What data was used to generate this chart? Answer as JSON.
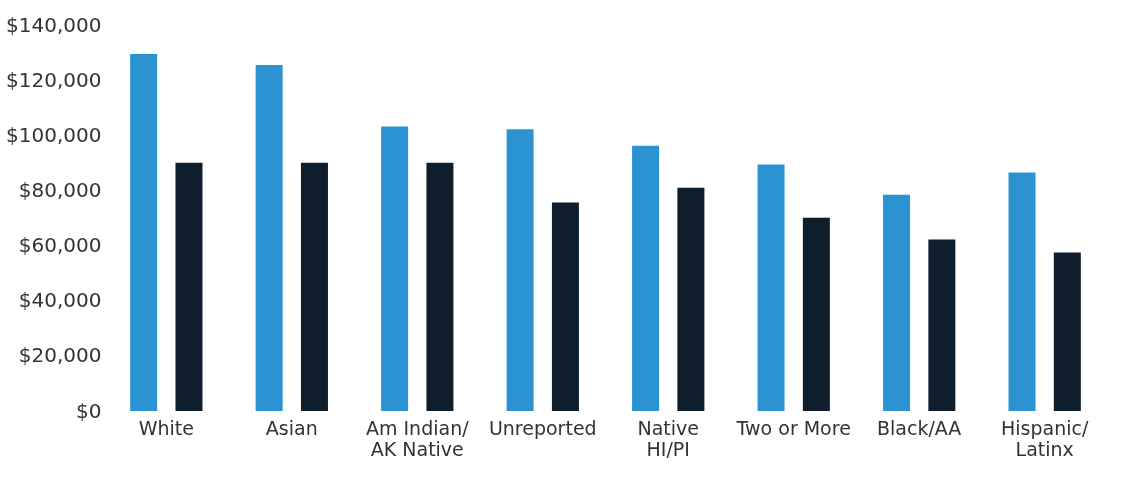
{
  "chart_data": {
    "type": "bar",
    "categories": [
      "White",
      "Asian",
      "Am Indian/\nAK Native",
      "Unreported",
      "Native\nHI/PI",
      "Two or More",
      "Black/AA",
      "Hispanic/\nLatinx"
    ],
    "series": [
      {
        "color": "#2b93d1",
        "values": [
          129500,
          125500,
          103200,
          102200,
          96200,
          89400,
          78400,
          86500
        ]
      },
      {
        "color": "#0f1e2c",
        "values": [
          90000,
          90000,
          90000,
          75600,
          81000,
          70100,
          62200,
          57500
        ]
      }
    ],
    "ylim": [
      0,
      140000
    ],
    "yticks": [
      {
        "value": 0,
        "label": "$0"
      },
      {
        "value": 20000,
        "label": "$20,000"
      },
      {
        "value": 40000,
        "label": "$40,000"
      },
      {
        "value": 60000,
        "label": "$60,000"
      },
      {
        "value": 80000,
        "label": "$80,000"
      },
      {
        "value": 100000,
        "label": "$100,000"
      },
      {
        "value": 120000,
        "label": "$120,000"
      },
      {
        "value": 140000,
        "label": "$140,000"
      }
    ],
    "grid": false
  }
}
